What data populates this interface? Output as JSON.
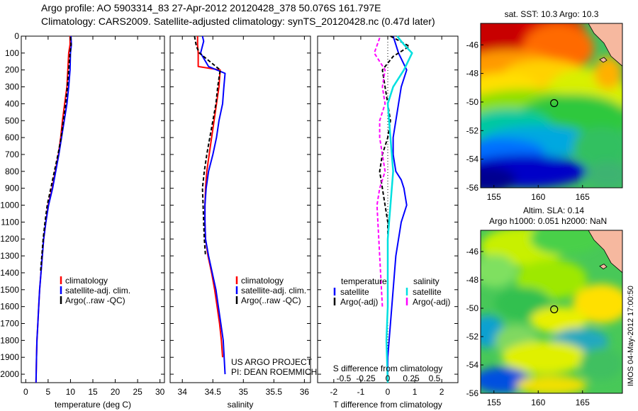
{
  "header": {
    "line1": "Argo profile: AO 5903314_83 27-Apr-2012 20120428_378 50.076S 161.797E",
    "line2": "Climatology: CARS2009. Satellite-adjusted climatology: synTS_20120428.nc (0.47d later)"
  },
  "colors": {
    "climatology": "#ff0000",
    "satellite": "#0000ff",
    "argo": "#000000",
    "satellite_salinity": "#00e0e0",
    "argo_salinity": "#ff00ff"
  },
  "chart_data": [
    {
      "type": "line",
      "panel": "temperature",
      "xlabel": "temperature (deg C)",
      "ylabel": "",
      "xlim": [
        -1,
        31
      ],
      "ylim": [
        2050,
        0
      ],
      "xticks": [
        "0",
        "5",
        "10",
        "15",
        "20",
        "25",
        "30"
      ],
      "yticks": [
        "0",
        "100",
        "200",
        "300",
        "400",
        "500",
        "600",
        "700",
        "800",
        "900",
        "1000",
        "1100",
        "1200",
        "1300",
        "1400",
        "1500",
        "1600",
        "1700",
        "1800",
        "1900",
        "2000"
      ],
      "legend": [
        "climatology",
        "satellite-adj. clim.",
        "Argo(..raw -QC)"
      ],
      "series": [
        {
          "name": "climatology",
          "x": [
            9.9,
            9.9,
            9.6,
            9.4,
            9.2,
            8.7,
            8.2,
            7.8,
            7.3,
            6.6,
            5.9,
            5.0,
            4.5,
            4.0,
            3.7,
            3.4,
            3.1,
            2.9,
            2.7,
            2.5,
            2.4,
            2.3
          ],
          "y": [
            0,
            50,
            100,
            200,
            300,
            400,
            500,
            600,
            700,
            800,
            900,
            1000,
            1100,
            1200,
            1300,
            1400,
            1500,
            1600,
            1700,
            1800,
            1900,
            2050
          ]
        },
        {
          "name": "satellite-adj. clim.",
          "x": [
            10.1,
            10.2,
            10.0,
            9.9,
            9.6,
            9.2,
            8.6,
            8.0,
            7.4,
            6.7,
            6.0,
            5.1,
            4.5,
            4.0,
            3.7,
            3.4,
            3.1,
            2.9,
            2.7,
            2.5,
            2.4,
            2.3
          ],
          "y": [
            0,
            50,
            100,
            200,
            300,
            400,
            500,
            600,
            700,
            800,
            900,
            1000,
            1100,
            1200,
            1300,
            1400,
            1500,
            1600,
            1700,
            1800,
            1900,
            2050
          ]
        },
        {
          "name": "Argo(..raw -QC)",
          "x": [
            10.0,
            10.1,
            9.9,
            9.6,
            9.3,
            8.9,
            8.4,
            7.9,
            7.2,
            6.4,
            5.6,
            4.8,
            4.3,
            3.9,
            3.6,
            3.3
          ],
          "y": [
            5,
            50,
            100,
            200,
            300,
            400,
            500,
            600,
            700,
            800,
            900,
            1000,
            1100,
            1200,
            1300,
            1400
          ]
        }
      ]
    },
    {
      "type": "line",
      "panel": "salinity",
      "xlabel": "salinity",
      "ylabel": "",
      "xlim": [
        33.8,
        36.1
      ],
      "ylim": [
        2050,
        0
      ],
      "xticks": [
        "34",
        "34.5",
        "35",
        "35.5",
        "36"
      ],
      "legend": [
        "climatology",
        "satellite-adj. clim.",
        "Argo(..raw -QC)"
      ],
      "series": [
        {
          "name": "climatology",
          "x": [
            34.25,
            34.25,
            34.26,
            34.26,
            34.62,
            34.6,
            34.56,
            34.52,
            34.48,
            34.44,
            34.4,
            34.38,
            34.37,
            34.37,
            34.38,
            34.42,
            34.48,
            34.53,
            34.57,
            34.61,
            34.64,
            34.66
          ],
          "y": [
            0,
            50,
            100,
            180,
            200,
            300,
            400,
            500,
            600,
            700,
            800,
            900,
            1000,
            1100,
            1200,
            1300,
            1400,
            1500,
            1600,
            1700,
            1800,
            1900
          ]
        },
        {
          "name": "satellite-adj. clim.",
          "x": [
            34.33,
            34.35,
            34.3,
            34.43,
            34.7,
            34.68,
            34.66,
            34.6,
            34.56,
            34.5,
            34.43,
            34.39,
            34.37,
            34.37,
            34.38,
            34.43,
            34.49,
            34.55,
            34.59,
            34.63,
            34.67,
            34.7
          ],
          "y": [
            0,
            30,
            100,
            180,
            220,
            300,
            400,
            500,
            600,
            700,
            800,
            900,
            1000,
            1100,
            1200,
            1300,
            1400,
            1500,
            1600,
            1700,
            1800,
            2000
          ]
        },
        {
          "name": "Argo(..raw -QC)",
          "x": [
            34.2,
            34.23,
            34.28,
            34.62,
            34.58,
            34.55,
            34.5,
            34.45,
            34.4,
            34.36,
            34.33,
            34.34,
            34.35,
            34.36,
            34.38
          ],
          "y": [
            0,
            60,
            100,
            200,
            300,
            400,
            500,
            600,
            700,
            800,
            900,
            1000,
            1100,
            1200,
            1300
          ]
        }
      ],
      "annotations": [
        "US ARGO PROJECT",
        "PI: DEAN ROEMMICH"
      ]
    },
    {
      "type": "line",
      "panel": "difference",
      "xlabel": "T difference from climatology",
      "ylabel": "",
      "xlim": [
        -2.6,
        2.6
      ],
      "ylim": [
        2050,
        0
      ],
      "xticks": [
        "-2",
        "-1",
        "0",
        "1",
        "2"
      ],
      "top_xlabel": "S difference from climatology",
      "top_xticks": [
        "-0.5",
        "-0.25",
        "0",
        "0.25",
        "0.5"
      ],
      "legend_headers": [
        "temperature",
        "salinity"
      ],
      "legend": [
        "satellite",
        "Argo(-adj)",
        "satellite",
        "Argo(-adj)"
      ],
      "series": [
        {
          "name": "temperature satellite",
          "x": [
            0.2,
            0.3,
            0.4,
            0.7,
            0.5,
            0.4,
            0.3,
            0.2,
            0.2,
            0.3,
            0.5,
            0.6,
            0.7,
            0.5,
            0.3,
            0.2,
            0.1,
            0.0,
            0.0
          ],
          "y": [
            0,
            50,
            100,
            200,
            300,
            400,
            500,
            600,
            700,
            800,
            850,
            900,
            1000,
            1100,
            1300,
            1500,
            1700,
            1900,
            2050
          ]
        },
        {
          "name": "temperature Argo(-adj)",
          "x": [
            0.1,
            0.8,
            0.2,
            -0.2,
            0.0,
            0.1,
            0.0,
            -0.2,
            -0.3,
            -0.2,
            -0.1,
            0.0,
            0.0
          ],
          "y": [
            0,
            60,
            120,
            200,
            400,
            500,
            600,
            700,
            800,
            900,
            1000,
            1100,
            1200
          ]
        },
        {
          "name": "salinity satellite",
          "x": [
            0.35,
            0.6,
            0.9,
            0.6,
            0.2,
            0.0,
            0.1,
            0.2,
            0.1,
            0.0,
            0.0,
            0.0,
            -0.05,
            0.0
          ],
          "y": [
            0,
            50,
            100,
            200,
            300,
            400,
            600,
            800,
            1000,
            1200,
            1400,
            1600,
            1800,
            2050
          ]
        },
        {
          "name": "salinity Argo(-adj)",
          "x": [
            -0.3,
            -0.5,
            -0.1,
            -0.2,
            -0.1,
            -0.3,
            -0.3,
            -0.2,
            -0.1,
            -0.3,
            -0.4,
            -0.3,
            -0.2
          ],
          "y": [
            10,
            100,
            200,
            300,
            400,
            500,
            600,
            700,
            800,
            900,
            1000,
            1300,
            1600
          ]
        }
      ]
    },
    {
      "type": "heatmap",
      "panel": "sst_map",
      "title": "sat. SST: 10.3  Argo: 10.3",
      "xlim": [
        153.5,
        169.5
      ],
      "ylim": [
        -56,
        -44.5
      ],
      "xticks": [
        "155",
        "160",
        "165"
      ],
      "yticks": [
        "-46",
        "-48",
        "-50",
        "-52",
        "-54",
        "-56"
      ],
      "marker": {
        "lon": 161.797,
        "lat": -50.076
      }
    },
    {
      "type": "heatmap",
      "panel": "sla_map",
      "title": "Altim. SLA: 0.14",
      "subtitle": "Argo h1000: 0.051 h2000: NaN",
      "side_label": "IMOS 04-May-2012 17:00:50",
      "xlim": [
        153.5,
        169.5
      ],
      "ylim": [
        -56,
        -44.5
      ],
      "xticks": [
        "155",
        "160",
        "165"
      ],
      "yticks": [
        "-46",
        "-48",
        "-50",
        "-52",
        "-54",
        "-56"
      ],
      "marker": {
        "lon": 161.797,
        "lat": -50.076
      }
    }
  ]
}
